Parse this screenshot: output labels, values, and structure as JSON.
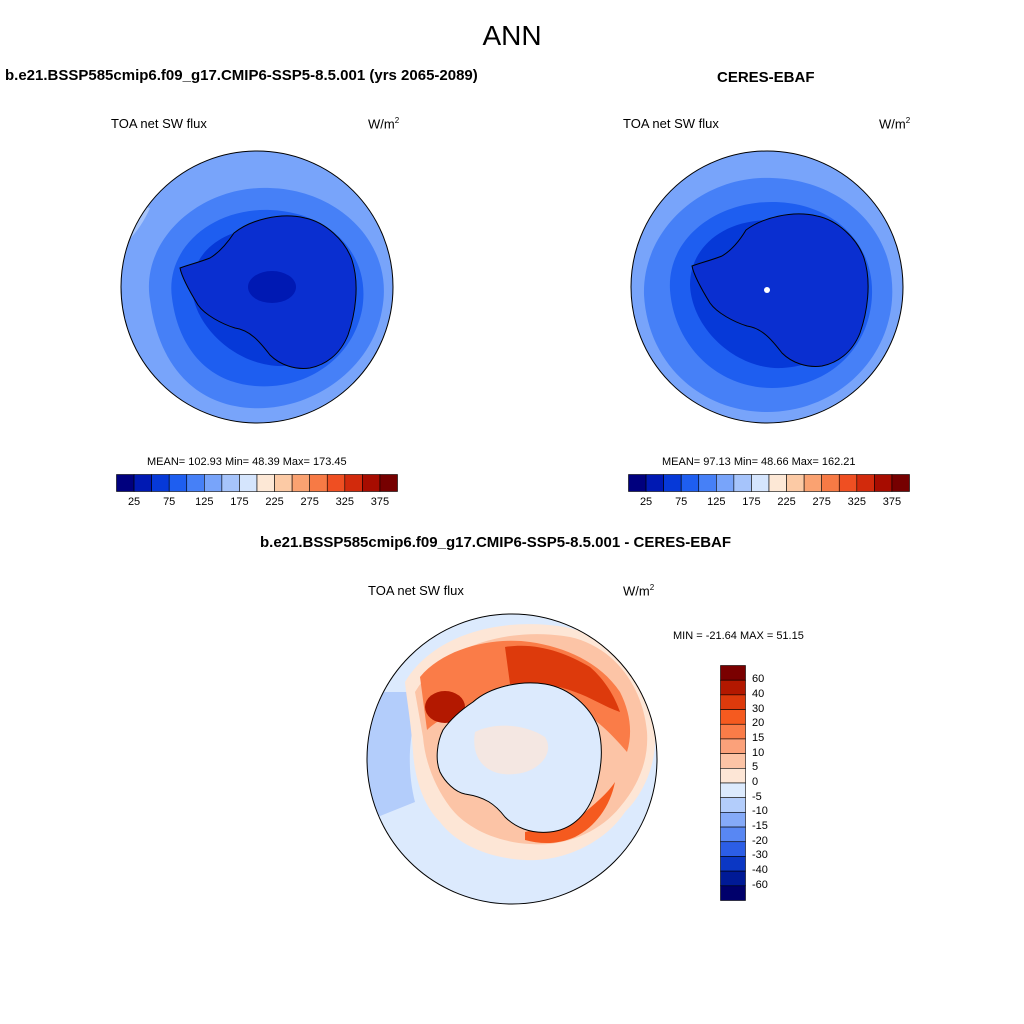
{
  "figure_title": "ANN",
  "panels": [
    {
      "title": "b.e21.BSSP585cmip6.f09_g17.CMIP6-SSP5-8.5.001 (yrs 2065-2089)",
      "variable": "TOA net SW flux",
      "units_base": "W/m",
      "units_exp": "2",
      "stats": "MEAN= 102.93  Min=  48.39  Max= 173.45"
    },
    {
      "title": "CERES-EBAF",
      "variable": "TOA net SW flux",
      "units_base": "W/m",
      "units_exp": "2",
      "stats": "MEAN=  97.13  Min=  48.66  Max= 162.21"
    },
    {
      "title": "b.e21.BSSP585cmip6.f09_g17.CMIP6-SSP5-8.5.001 - CERES-EBAF",
      "variable": "TOA net SW flux",
      "units_base": "W/m",
      "units_exp": "2",
      "stats": "MIN = -21.64 MAX =  51.15"
    }
  ],
  "chart_data": [
    {
      "type": "heatmap",
      "projection": "south polar stereographic",
      "title": "b.e21.BSSP585cmip6.f09_g17.CMIP6-SSP5-8.5.001 (yrs 2065-2089)",
      "variable": "TOA net SW flux",
      "units": "W/m2",
      "mean": 102.93,
      "min": 48.39,
      "max": 173.45,
      "colorbar_levels": [
        25,
        50,
        75,
        100,
        125,
        150,
        175,
        200,
        225,
        250,
        275,
        300,
        325,
        350,
        375
      ],
      "colorbar_tick_labels": [
        "25",
        "75",
        "125",
        "175",
        "225",
        "275",
        "325",
        "375"
      ],
      "colorbar_colors": [
        "#00007e",
        "#0019b3",
        "#0639d8",
        "#1e5ef0",
        "#4680f7",
        "#78a4fa",
        "#a6c4fb",
        "#d5e5fd",
        "#fde8d6",
        "#fccaa5",
        "#faa271",
        "#f77a45",
        "#ef4f22",
        "#d22a0c",
        "#a70c00",
        "#760000"
      ]
    },
    {
      "type": "heatmap",
      "projection": "south polar stereographic",
      "title": "CERES-EBAF",
      "variable": "TOA net SW flux",
      "units": "W/m2",
      "mean": 97.13,
      "min": 48.66,
      "max": 162.21,
      "colorbar_levels": [
        25,
        50,
        75,
        100,
        125,
        150,
        175,
        200,
        225,
        250,
        275,
        300,
        325,
        350,
        375
      ],
      "colorbar_tick_labels": [
        "25",
        "75",
        "125",
        "175",
        "225",
        "275",
        "325",
        "375"
      ],
      "colorbar_colors": [
        "#00007e",
        "#0019b3",
        "#0639d8",
        "#1e5ef0",
        "#4680f7",
        "#78a4fa",
        "#a6c4fb",
        "#d5e5fd",
        "#fde8d6",
        "#fccaa5",
        "#faa271",
        "#f77a45",
        "#ef4f22",
        "#d22a0c",
        "#a70c00",
        "#760000"
      ]
    },
    {
      "type": "heatmap",
      "projection": "south polar stereographic",
      "title": "b.e21.BSSP585cmip6.f09_g17.CMIP6-SSP5-8.5.001 - CERES-EBAF",
      "variable": "TOA net SW flux",
      "units": "W/m2",
      "min": -21.64,
      "max": 51.15,
      "colorbar_levels": [
        60,
        40,
        30,
        20,
        15,
        10,
        5,
        0,
        -5,
        -10,
        -15,
        -20,
        -30,
        -40,
        -60
      ],
      "colorbar_tick_labels": [
        "60",
        "40",
        "30",
        "20",
        "15",
        "10",
        "5",
        "0",
        "-5",
        "-10",
        "-15",
        "-20",
        "-30",
        "-40",
        "-60"
      ],
      "colorbar_colors": [
        "#7a0000",
        "#b31800",
        "#dd3a0c",
        "#f55a1f",
        "#fa7c48",
        "#fba17a",
        "#fcc4a6",
        "#fde6d6",
        "#dceafd",
        "#b3cdfb",
        "#85aaf8",
        "#5887f3",
        "#2c5ee6",
        "#0b37c4",
        "#001a96",
        "#00006b"
      ]
    }
  ]
}
